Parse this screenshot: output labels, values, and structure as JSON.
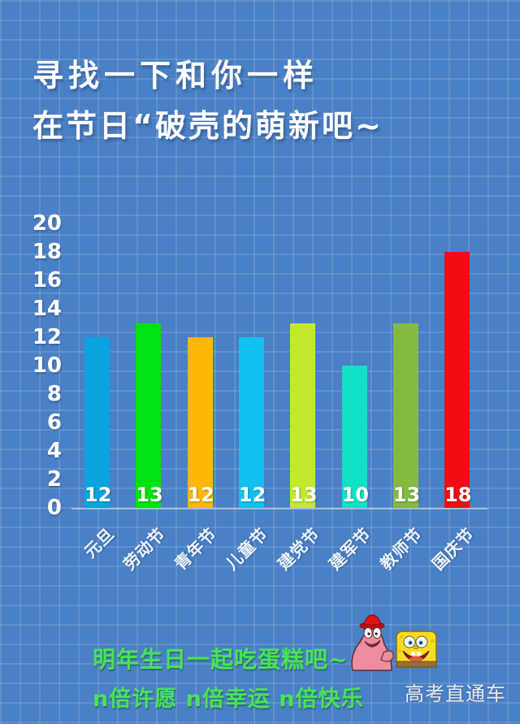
{
  "page": {
    "title_line1": "寻找一下和你一样",
    "title_line2": "在节日“破壳的萌新吧~",
    "footer_line1": "明年生日一起吃蛋糕吧~",
    "footer_line2": "n倍许愿 n倍幸运 n倍快乐",
    "watermark": "高考直通车",
    "background_color": "#4a80c5",
    "grid_color": "#6394d3",
    "title_color": "#ffffff",
    "footer_text_color": "#49e158",
    "watermark_color": "#e9e9e9"
  },
  "icons": {
    "sticker": "spongebob-patrick-sticker"
  },
  "chart_data": {
    "type": "bar",
    "title": "",
    "xlabel": "",
    "ylabel": "",
    "categories": [
      "元旦",
      "劳动节",
      "青年节",
      "儿童节",
      "建党节",
      "建军节",
      "教师节",
      "国庆节"
    ],
    "values": [
      12,
      13,
      12,
      12,
      13,
      10,
      13,
      18
    ],
    "bar_colors": [
      "#0ba3e0",
      "#00e312",
      "#fdb705",
      "#12c1f0",
      "#c3e830",
      "#10e2c5",
      "#84ba40",
      "#f20d12"
    ],
    "value_labels": [
      "12",
      "13",
      "12",
      "12",
      "13",
      "10",
      "13",
      "18"
    ],
    "yticks": [
      0,
      2,
      4,
      6,
      8,
      10,
      12,
      14,
      16,
      18,
      20
    ],
    "ylim": [
      0,
      20
    ],
    "grid": "background blueprint grid",
    "legend": "none",
    "value_label_color": "#ffffff",
    "axis_label_color": "#ffffff"
  }
}
